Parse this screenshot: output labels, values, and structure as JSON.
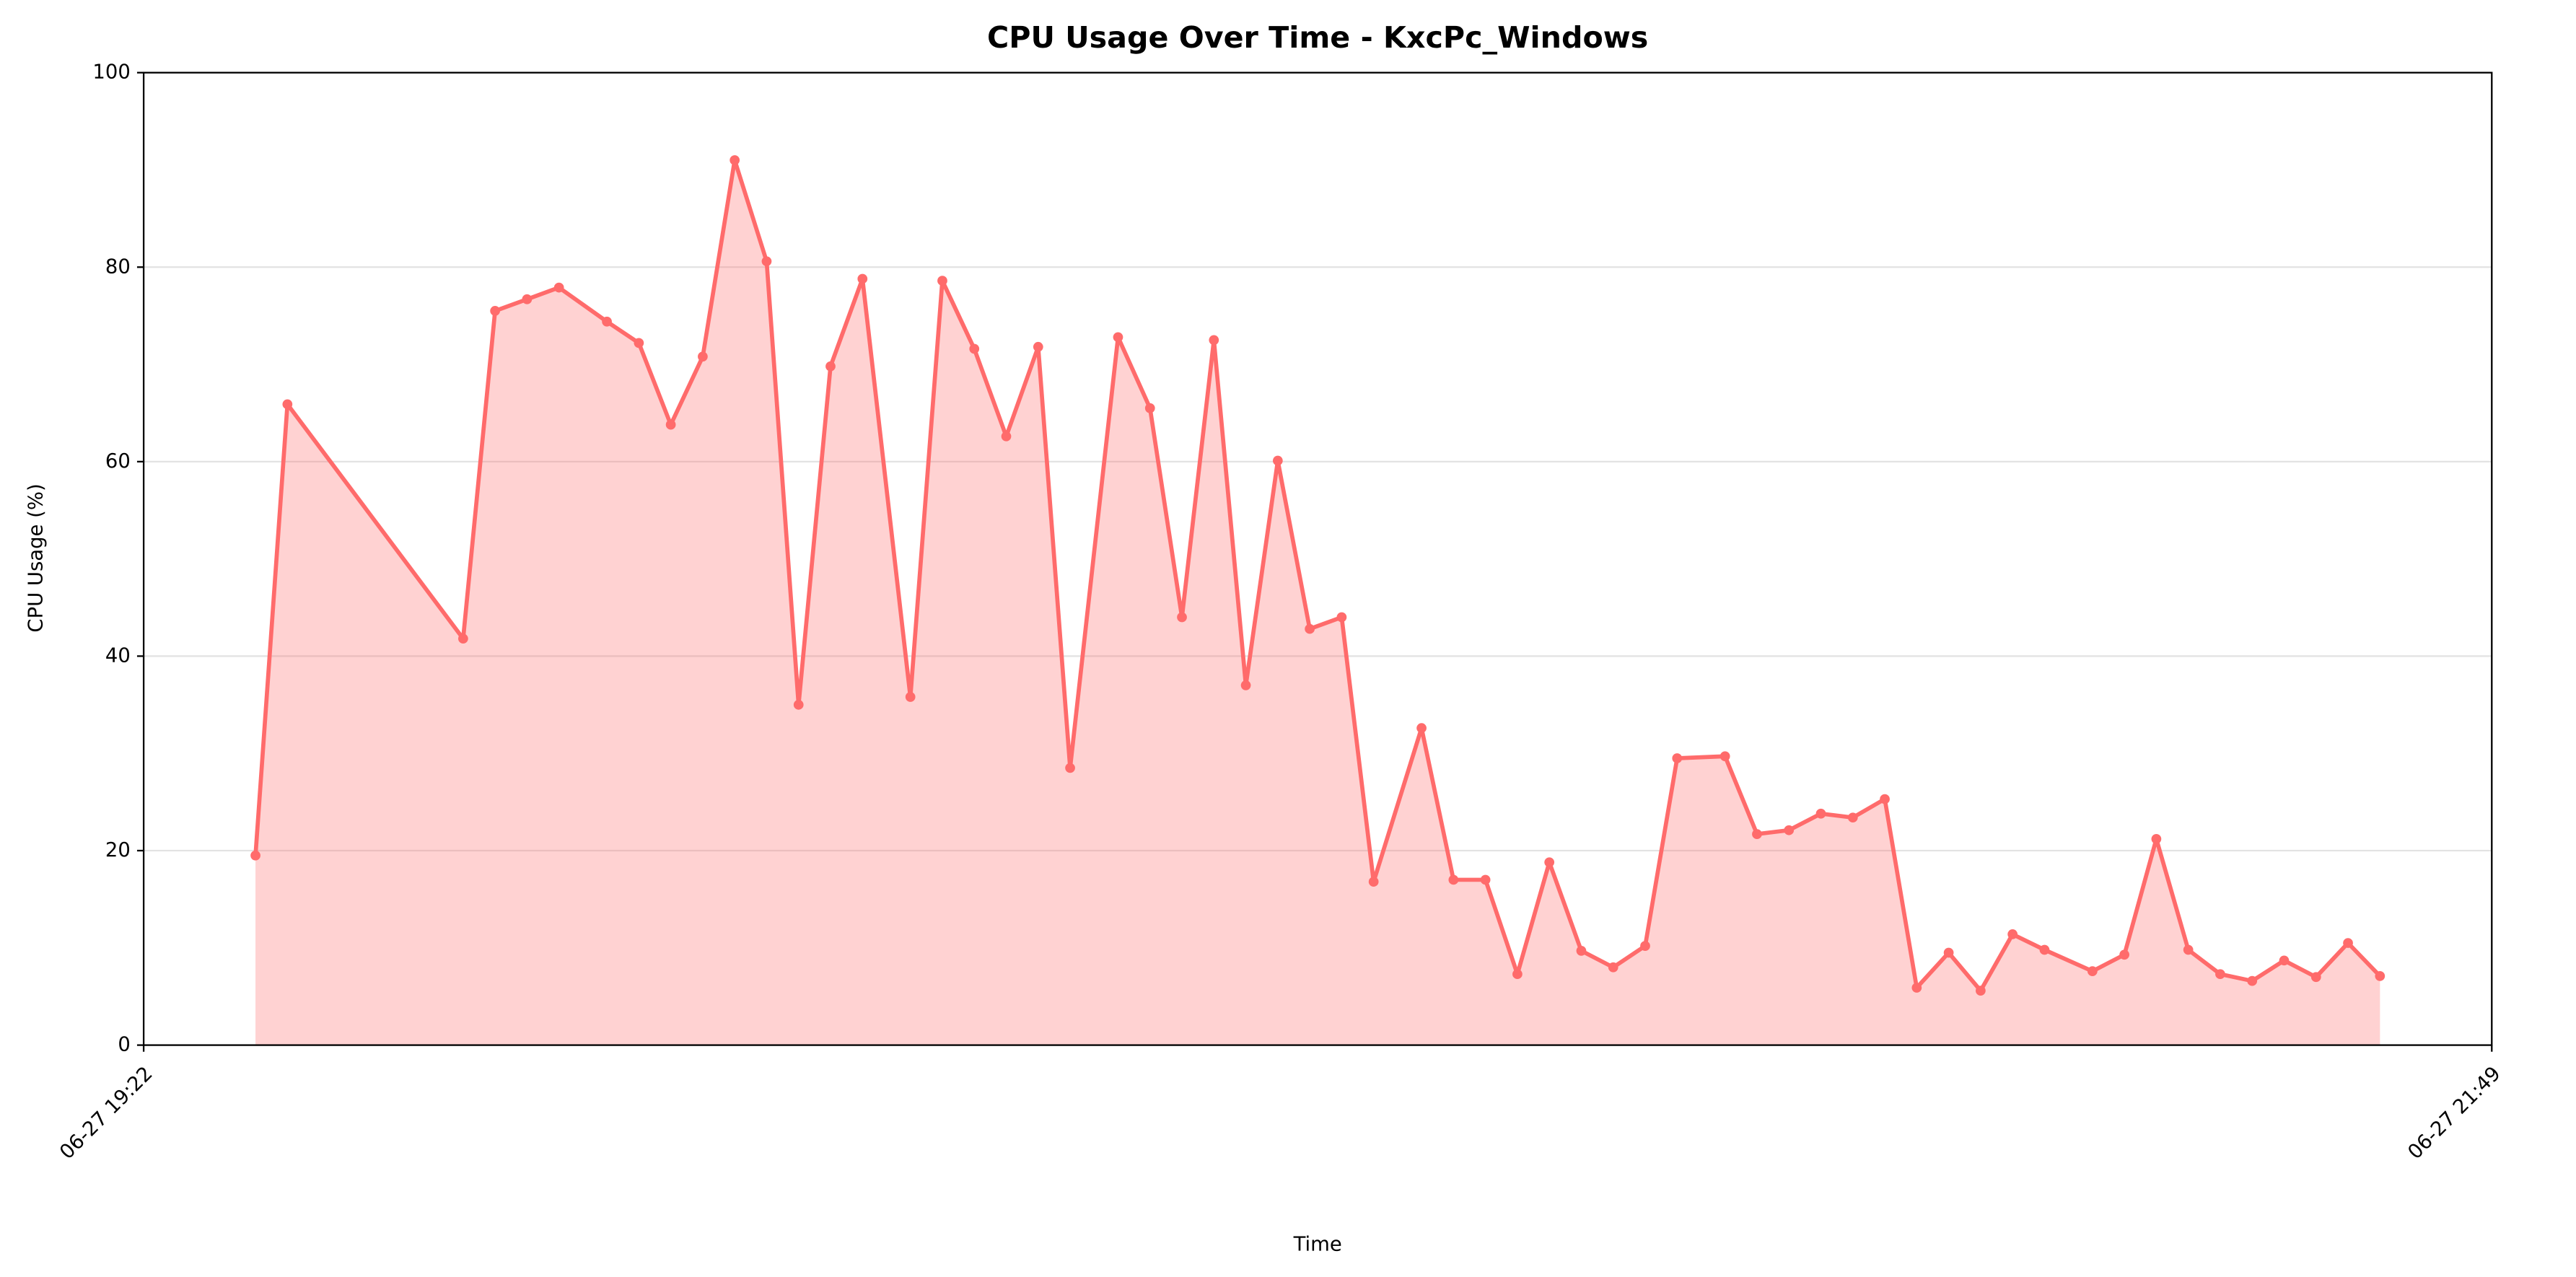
{
  "chart_data": {
    "type": "line",
    "title": "CPU Usage Over Time - KxcPc_Windows",
    "x_label": "Time",
    "y_label": "CPU Usage (%)",
    "xlim": [
      "06-27 19:22",
      "06-27 21:49"
    ],
    "xticks": [
      "06-27 19:22",
      "06-27 21:49"
    ],
    "ylim": [
      0,
      100
    ],
    "yticks": [
      0,
      20,
      40,
      60,
      80,
      100
    ],
    "grid": true,
    "series": [
      {
        "name": "CPU Usage",
        "color": "#ff6b6b",
        "x": [
          "06-27 19:29",
          "06-27 19:31",
          "06-27 19:42",
          "06-27 19:44",
          "06-27 19:46",
          "06-27 19:48",
          "06-27 19:51",
          "06-27 19:53",
          "06-27 19:55",
          "06-27 19:57",
          "06-27 19:59",
          "06-27 20:01",
          "06-27 20:03",
          "06-27 20:05",
          "06-27 20:07",
          "06-27 20:10",
          "06-27 20:12",
          "06-27 20:14",
          "06-27 20:16",
          "06-27 20:18",
          "06-27 20:20",
          "06-27 20:23",
          "06-27 20:25",
          "06-27 20:27",
          "06-27 20:29",
          "06-27 20:31",
          "06-27 20:33",
          "06-27 20:35",
          "06-27 20:37",
          "06-27 20:39",
          "06-27 20:42",
          "06-27 20:44",
          "06-27 20:46",
          "06-27 20:48",
          "06-27 20:50",
          "06-27 20:52",
          "06-27 20:54",
          "06-27 20:56",
          "06-27 20:58",
          "06-27 21:01",
          "06-27 21:03",
          "06-27 21:05",
          "06-27 21:07",
          "06-27 21:09",
          "06-27 21:11",
          "06-27 21:13",
          "06-27 21:15",
          "06-27 21:17",
          "06-27 21:19",
          "06-27 21:21",
          "06-27 21:24",
          "06-27 21:26",
          "06-27 21:28",
          "06-27 21:30",
          "06-27 21:32",
          "06-27 21:34",
          "06-27 21:36",
          "06-27 21:38",
          "06-27 21:40",
          "06-27 21:42"
        ],
        "values": [
          19.5,
          65.9,
          41.8,
          75.5,
          76.7,
          77.9,
          74.4,
          72.2,
          63.8,
          70.8,
          91.0,
          80.6,
          35.0,
          69.8,
          78.8,
          35.8,
          78.6,
          71.6,
          62.6,
          71.8,
          28.5,
          72.8,
          65.5,
          44.0,
          72.5,
          37.0,
          60.1,
          42.8,
          44.0,
          16.8,
          32.6,
          17.0,
          17.0,
          7.3,
          18.8,
          9.7,
          8.0,
          10.2,
          29.5,
          29.7,
          21.7,
          22.1,
          23.8,
          23.4,
          25.3,
          5.9,
          9.5,
          5.6,
          11.4,
          9.8,
          7.6,
          9.3,
          21.2,
          9.8,
          7.3,
          6.6,
          8.7,
          7.0,
          10.5,
          7.1
        ]
      }
    ]
  }
}
